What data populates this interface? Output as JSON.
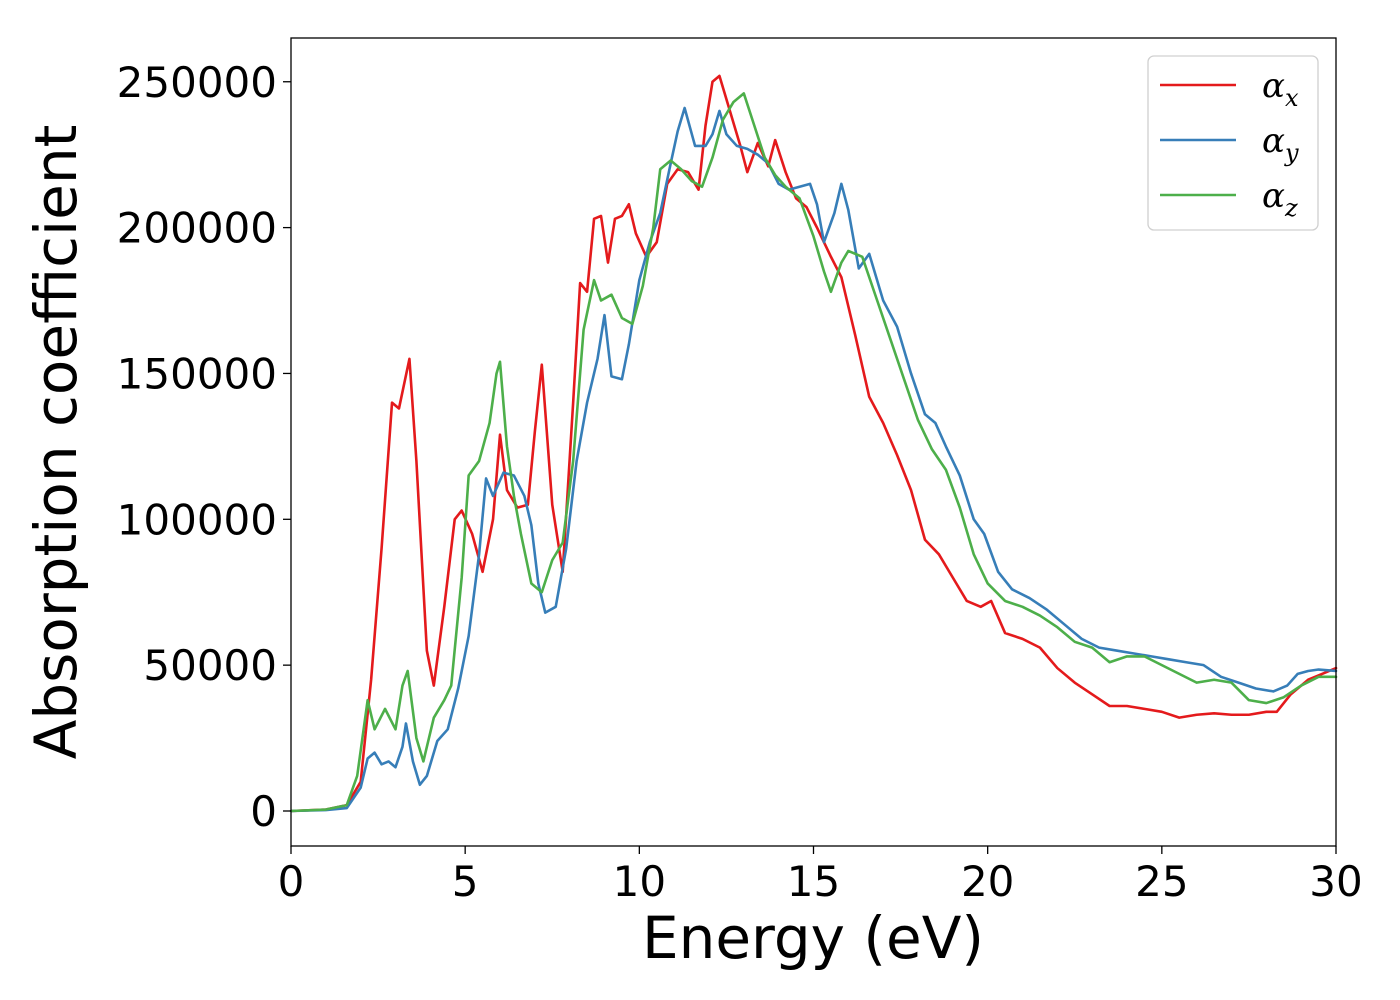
{
  "chart_data": {
    "type": "line",
    "title": "",
    "xlabel": "Energy (eV)",
    "ylabel": "Absorption coefficient",
    "xlim": [
      0,
      30
    ],
    "ylim": [
      -12000,
      265000
    ],
    "xticks": [
      0,
      5,
      10,
      15,
      20,
      25,
      30
    ],
    "xtick_labels": [
      "0",
      "5",
      "10",
      "15",
      "20",
      "25",
      "30"
    ],
    "yticks": [
      0,
      50000,
      100000,
      150000,
      200000,
      250000
    ],
    "ytick_labels": [
      "0",
      "50000",
      "100000",
      "150000",
      "200000",
      "250000"
    ],
    "grid": false,
    "legend_position": "top-right",
    "series": [
      {
        "name": "α_x",
        "legend_base": "α",
        "legend_sub": "x",
        "color": "#e41a1c",
        "points": [
          [
            0,
            0
          ],
          [
            1,
            500
          ],
          [
            1.6,
            2000
          ],
          [
            2,
            10000
          ],
          [
            2.3,
            45000
          ],
          [
            2.6,
            90000
          ],
          [
            2.9,
            140000
          ],
          [
            3.1,
            138000
          ],
          [
            3.4,
            155000
          ],
          [
            3.6,
            120000
          ],
          [
            3.9,
            55000
          ],
          [
            4.1,
            43000
          ],
          [
            4.4,
            70000
          ],
          [
            4.7,
            100000
          ],
          [
            4.9,
            103000
          ],
          [
            5.2,
            95000
          ],
          [
            5.5,
            82000
          ],
          [
            5.8,
            100000
          ],
          [
            6,
            129000
          ],
          [
            6.2,
            110000
          ],
          [
            6.5,
            104000
          ],
          [
            6.8,
            105000
          ],
          [
            7,
            130000
          ],
          [
            7.2,
            153000
          ],
          [
            7.5,
            105000
          ],
          [
            7.8,
            82000
          ],
          [
            8.1,
            140000
          ],
          [
            8.3,
            181000
          ],
          [
            8.5,
            178000
          ],
          [
            8.7,
            203000
          ],
          [
            8.9,
            204000
          ],
          [
            9.1,
            188000
          ],
          [
            9.3,
            203000
          ],
          [
            9.5,
            204000
          ],
          [
            9.7,
            208000
          ],
          [
            9.9,
            198000
          ],
          [
            10.2,
            190000
          ],
          [
            10.5,
            195000
          ],
          [
            10.8,
            215000
          ],
          [
            11.1,
            220000
          ],
          [
            11.4,
            219000
          ],
          [
            11.7,
            213000
          ],
          [
            11.9,
            235000
          ],
          [
            12.1,
            250000
          ],
          [
            12.3,
            252000
          ],
          [
            12.6,
            240000
          ],
          [
            12.9,
            228000
          ],
          [
            13.1,
            219000
          ],
          [
            13.4,
            229000
          ],
          [
            13.7,
            221000
          ],
          [
            13.9,
            230000
          ],
          [
            14.2,
            219000
          ],
          [
            14.5,
            210000
          ],
          [
            14.8,
            207000
          ],
          [
            15.1,
            200000
          ],
          [
            15.5,
            190000
          ],
          [
            15.8,
            183000
          ],
          [
            16.2,
            163000
          ],
          [
            16.6,
            142000
          ],
          [
            17,
            133000
          ],
          [
            17.4,
            122000
          ],
          [
            17.8,
            110000
          ],
          [
            18.2,
            93000
          ],
          [
            18.6,
            88000
          ],
          [
            19,
            80000
          ],
          [
            19.4,
            72000
          ],
          [
            19.8,
            70000
          ],
          [
            20.1,
            72000
          ],
          [
            20.5,
            61000
          ],
          [
            21,
            59000
          ],
          [
            21.5,
            56000
          ],
          [
            22,
            49000
          ],
          [
            22.5,
            44000
          ],
          [
            23,
            40000
          ],
          [
            23.5,
            36000
          ],
          [
            24,
            36000
          ],
          [
            24.5,
            35000
          ],
          [
            25,
            34000
          ],
          [
            25.5,
            32000
          ],
          [
            26,
            33000
          ],
          [
            26.5,
            33500
          ],
          [
            27,
            33000
          ],
          [
            27.5,
            33000
          ],
          [
            28,
            34000
          ],
          [
            28.3,
            34000
          ],
          [
            28.7,
            40000
          ],
          [
            29.2,
            45000
          ],
          [
            29.6,
            47000
          ],
          [
            30,
            49000
          ]
        ]
      },
      {
        "name": "α_y",
        "legend_base": "α",
        "legend_sub": "y",
        "color": "#377eb8",
        "points": [
          [
            0,
            0
          ],
          [
            1,
            300
          ],
          [
            1.6,
            1000
          ],
          [
            2,
            8000
          ],
          [
            2.2,
            18000
          ],
          [
            2.4,
            20000
          ],
          [
            2.6,
            16000
          ],
          [
            2.8,
            17000
          ],
          [
            3,
            15000
          ],
          [
            3.2,
            22000
          ],
          [
            3.3,
            30000
          ],
          [
            3.5,
            17000
          ],
          [
            3.7,
            9000
          ],
          [
            3.9,
            12000
          ],
          [
            4.2,
            24000
          ],
          [
            4.5,
            28000
          ],
          [
            4.8,
            42000
          ],
          [
            5.1,
            60000
          ],
          [
            5.4,
            88000
          ],
          [
            5.6,
            114000
          ],
          [
            5.8,
            108000
          ],
          [
            6.1,
            116000
          ],
          [
            6.4,
            115000
          ],
          [
            6.7,
            108000
          ],
          [
            6.9,
            98000
          ],
          [
            7.1,
            78000
          ],
          [
            7.3,
            68000
          ],
          [
            7.6,
            70000
          ],
          [
            7.9,
            90000
          ],
          [
            8.2,
            120000
          ],
          [
            8.5,
            140000
          ],
          [
            8.8,
            155000
          ],
          [
            9,
            170000
          ],
          [
            9.2,
            149000
          ],
          [
            9.5,
            148000
          ],
          [
            9.7,
            160000
          ],
          [
            10,
            182000
          ],
          [
            10.3,
            195000
          ],
          [
            10.6,
            205000
          ],
          [
            10.9,
            222000
          ],
          [
            11.1,
            233000
          ],
          [
            11.3,
            241000
          ],
          [
            11.6,
            228000
          ],
          [
            11.9,
            228000
          ],
          [
            12.1,
            232000
          ],
          [
            12.3,
            240000
          ],
          [
            12.5,
            232000
          ],
          [
            12.8,
            228000
          ],
          [
            13.1,
            227000
          ],
          [
            13.4,
            225000
          ],
          [
            13.7,
            222000
          ],
          [
            14,
            215000
          ],
          [
            14.3,
            213000
          ],
          [
            14.6,
            214000
          ],
          [
            14.9,
            215000
          ],
          [
            15.1,
            208000
          ],
          [
            15.3,
            195000
          ],
          [
            15.6,
            205000
          ],
          [
            15.8,
            215000
          ],
          [
            16,
            206000
          ],
          [
            16.3,
            186000
          ],
          [
            16.6,
            191000
          ],
          [
            17,
            175000
          ],
          [
            17.4,
            166000
          ],
          [
            17.8,
            150000
          ],
          [
            18.2,
            136000
          ],
          [
            18.5,
            133000
          ],
          [
            18.8,
            125000
          ],
          [
            19.2,
            115000
          ],
          [
            19.6,
            100000
          ],
          [
            19.9,
            95000
          ],
          [
            20.3,
            82000
          ],
          [
            20.7,
            76000
          ],
          [
            21.2,
            73000
          ],
          [
            21.7,
            69000
          ],
          [
            22.2,
            64000
          ],
          [
            22.7,
            59000
          ],
          [
            23.2,
            56000
          ],
          [
            23.7,
            55000
          ],
          [
            24.2,
            54000
          ],
          [
            24.7,
            53000
          ],
          [
            25.2,
            52000
          ],
          [
            25.7,
            51000
          ],
          [
            26.2,
            50000
          ],
          [
            26.7,
            46000
          ],
          [
            27.2,
            44000
          ],
          [
            27.7,
            42000
          ],
          [
            28.2,
            41000
          ],
          [
            28.6,
            43000
          ],
          [
            28.9,
            47000
          ],
          [
            29.2,
            48000
          ],
          [
            29.5,
            48500
          ],
          [
            30,
            48000
          ]
        ]
      },
      {
        "name": "α_z",
        "legend_base": "α",
        "legend_sub": "z",
        "color": "#4daf4a",
        "points": [
          [
            0,
            0
          ],
          [
            1,
            500
          ],
          [
            1.6,
            2000
          ],
          [
            1.9,
            12000
          ],
          [
            2.2,
            38000
          ],
          [
            2.4,
            28000
          ],
          [
            2.7,
            35000
          ],
          [
            3,
            28000
          ],
          [
            3.2,
            43000
          ],
          [
            3.35,
            48000
          ],
          [
            3.6,
            25000
          ],
          [
            3.8,
            17000
          ],
          [
            4.1,
            32000
          ],
          [
            4.4,
            38000
          ],
          [
            4.6,
            43000
          ],
          [
            4.9,
            80000
          ],
          [
            5.1,
            115000
          ],
          [
            5.4,
            120000
          ],
          [
            5.7,
            133000
          ],
          [
            5.9,
            150000
          ],
          [
            6,
            154000
          ],
          [
            6.2,
            125000
          ],
          [
            6.4,
            108000
          ],
          [
            6.6,
            95000
          ],
          [
            6.9,
            78000
          ],
          [
            7.2,
            75000
          ],
          [
            7.5,
            86000
          ],
          [
            7.8,
            92000
          ],
          [
            8.1,
            120000
          ],
          [
            8.4,
            165000
          ],
          [
            8.7,
            182000
          ],
          [
            8.9,
            175000
          ],
          [
            9.2,
            177000
          ],
          [
            9.5,
            169000
          ],
          [
            9.8,
            167000
          ],
          [
            10.1,
            180000
          ],
          [
            10.4,
            200000
          ],
          [
            10.6,
            220000
          ],
          [
            10.9,
            223000
          ],
          [
            11.2,
            220000
          ],
          [
            11.5,
            216000
          ],
          [
            11.8,
            214000
          ],
          [
            12.1,
            224000
          ],
          [
            12.4,
            237000
          ],
          [
            12.7,
            243000
          ],
          [
            13,
            246000
          ],
          [
            13.3,
            235000
          ],
          [
            13.6,
            224000
          ],
          [
            13.9,
            218000
          ],
          [
            14.2,
            214000
          ],
          [
            14.6,
            210000
          ],
          [
            15,
            197000
          ],
          [
            15.3,
            185000
          ],
          [
            15.5,
            178000
          ],
          [
            15.8,
            188000
          ],
          [
            16,
            192000
          ],
          [
            16.4,
            190000
          ],
          [
            16.8,
            176000
          ],
          [
            17.2,
            162000
          ],
          [
            17.6,
            148000
          ],
          [
            18,
            134000
          ],
          [
            18.4,
            124000
          ],
          [
            18.8,
            117000
          ],
          [
            19.2,
            104000
          ],
          [
            19.6,
            88000
          ],
          [
            20,
            78000
          ],
          [
            20.5,
            72000
          ],
          [
            21,
            70000
          ],
          [
            21.5,
            67000
          ],
          [
            22,
            63000
          ],
          [
            22.5,
            58000
          ],
          [
            23,
            56000
          ],
          [
            23.5,
            51000
          ],
          [
            24,
            53000
          ],
          [
            24.5,
            53000
          ],
          [
            25,
            50000
          ],
          [
            25.5,
            47000
          ],
          [
            26,
            44000
          ],
          [
            26.5,
            45000
          ],
          [
            27,
            44000
          ],
          [
            27.5,
            38000
          ],
          [
            28,
            37000
          ],
          [
            28.5,
            39000
          ],
          [
            29,
            43000
          ],
          [
            29.5,
            46000
          ],
          [
            30,
            46000
          ]
        ]
      }
    ]
  }
}
